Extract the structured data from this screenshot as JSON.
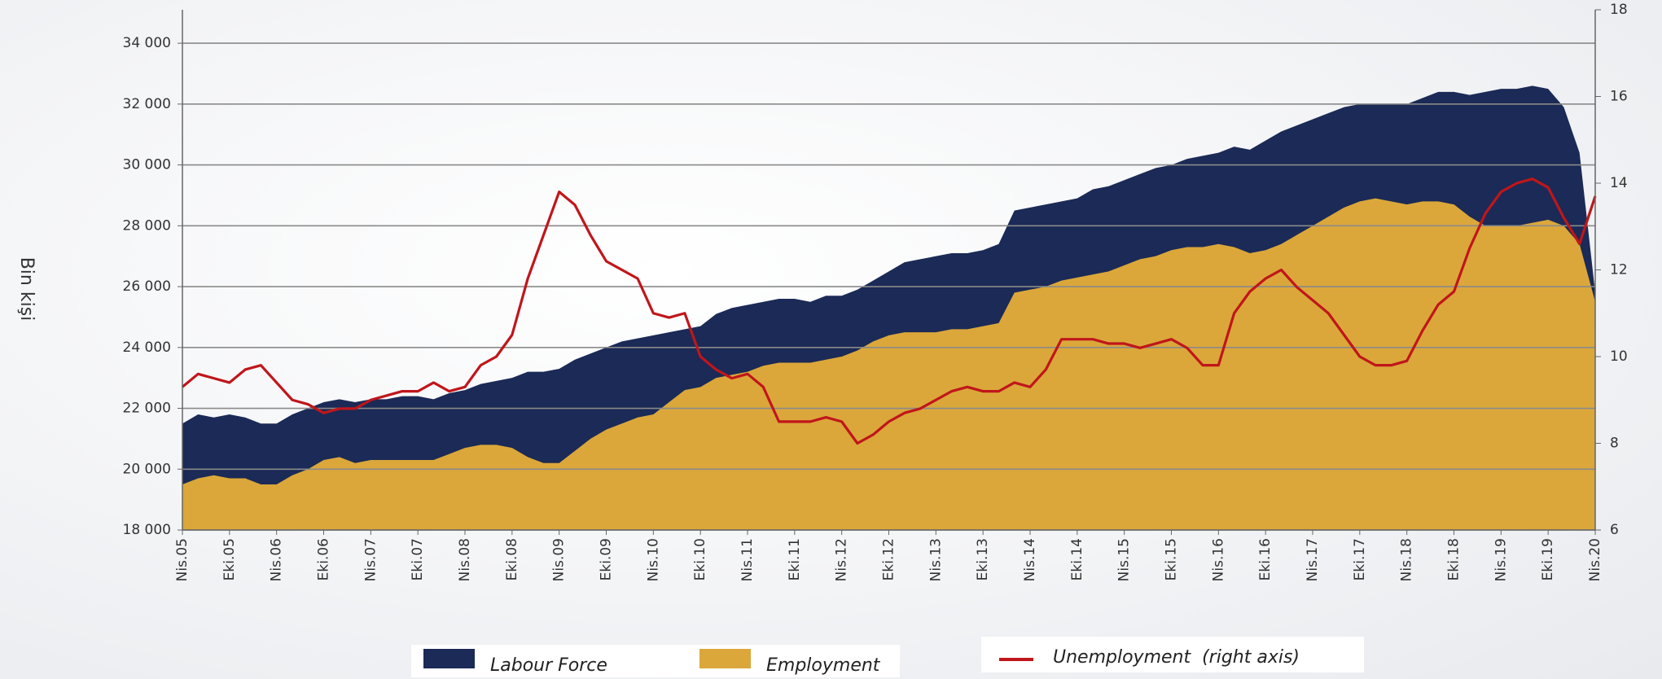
{
  "chart_data": {
    "type": "area",
    "y_axis_label": "Bin kişi",
    "categories": [
      "Nis.05",
      null,
      null,
      "Eki.05",
      null,
      null,
      "Nis.06",
      null,
      null,
      "Eki.06",
      null,
      null,
      "Nis.07",
      null,
      null,
      "Eki.07",
      null,
      null,
      "Nis.08",
      null,
      null,
      "Eki.08",
      null,
      null,
      "Nis.09",
      null,
      null,
      "Eki.09",
      null,
      null,
      "Nis.10",
      null,
      null,
      "Eki.10",
      null,
      null,
      "Nis.11",
      null,
      null,
      "Eki.11",
      null,
      null,
      "Nis.12",
      null,
      null,
      "Eki.12",
      null,
      null,
      "Nis.13",
      null,
      null,
      "Eki.13",
      null,
      null,
      "Nis.14",
      null,
      null,
      "Eki.14",
      null,
      null,
      "Nis.15",
      null,
      null,
      "Eki.15",
      null,
      null,
      "Nis.16",
      null,
      null,
      "Eki.16",
      null,
      null,
      "Nis.17",
      null,
      null,
      "Eki.17",
      null,
      null,
      "Nis.18",
      null,
      null,
      "Eki.18",
      null,
      null,
      "Nis.19",
      null,
      null,
      "Eki.19",
      null,
      null,
      "Nis.20"
    ],
    "series": [
      {
        "name": "Labour Force",
        "type": "area",
        "color": "#1b2a56",
        "values": [
          21500,
          21800,
          21700,
          21800,
          21700,
          21500,
          21500,
          21800,
          22000,
          22200,
          22300,
          22200,
          22300,
          22300,
          22400,
          22400,
          22300,
          22500,
          22600,
          22800,
          22900,
          23000,
          23200,
          23200,
          23300,
          23600,
          23800,
          24000,
          24200,
          24300,
          24400,
          24500,
          24600,
          24700,
          25100,
          25300,
          25400,
          25500,
          25600,
          25600,
          25500,
          25700,
          25700,
          25900,
          26200,
          26500,
          26800,
          26900,
          27000,
          27100,
          27100,
          27200,
          27400,
          28500,
          28600,
          28700,
          28800,
          28900,
          29200,
          29300,
          29500,
          29700,
          29900,
          30000,
          30200,
          30300,
          30400,
          30600,
          30500,
          30800,
          31100,
          31300,
          31500,
          31700,
          31900,
          32000,
          32000,
          32000,
          32000,
          32200,
          32400,
          32400,
          32300,
          32400,
          32500,
          32500,
          32600,
          32500,
          31900,
          30400,
          25800
        ]
      },
      {
        "name": "Employment",
        "type": "area",
        "color": "#dba73a",
        "values": [
          19500,
          19700,
          19800,
          19700,
          19700,
          19500,
          19500,
          19800,
          20000,
          20300,
          20400,
          20200,
          20300,
          20300,
          20300,
          20300,
          20300,
          20500,
          20700,
          20800,
          20800,
          20700,
          20400,
          20200,
          20200,
          20600,
          21000,
          21300,
          21500,
          21700,
          21800,
          22200,
          22600,
          22700,
          23000,
          23100,
          23200,
          23400,
          23500,
          23500,
          23500,
          23600,
          23700,
          23900,
          24200,
          24400,
          24500,
          24500,
          24500,
          24600,
          24600,
          24700,
          24800,
          25800,
          25900,
          26000,
          26200,
          26300,
          26400,
          26500,
          26700,
          26900,
          27000,
          27200,
          27300,
          27300,
          27400,
          27300,
          27100,
          27200,
          27400,
          27700,
          28000,
          28300,
          28600,
          28800,
          28900,
          28800,
          28700,
          28800,
          28800,
          28700,
          28300,
          28000,
          28000,
          28000,
          28100,
          28200,
          28000,
          27400,
          25500
        ]
      },
      {
        "name": "Unemployment  (right axis)",
        "type": "line",
        "axis": "y2",
        "color": "#c0161b",
        "values": [
          9.3,
          9.6,
          9.5,
          9.4,
          9.7,
          9.8,
          9.4,
          9.0,
          8.9,
          8.7,
          8.8,
          8.8,
          9.0,
          9.1,
          9.2,
          9.2,
          9.4,
          9.2,
          9.3,
          9.8,
          10.0,
          10.5,
          11.8,
          12.8,
          13.8,
          13.5,
          12.8,
          12.2,
          12.0,
          11.8,
          11.0,
          10.9,
          11.0,
          10.0,
          9.7,
          9.5,
          9.6,
          9.3,
          8.5,
          8.5,
          8.5,
          8.6,
          8.5,
          8.0,
          8.2,
          8.5,
          8.7,
          8.8,
          9.0,
          9.2,
          9.3,
          9.2,
          9.2,
          9.4,
          9.3,
          9.7,
          10.4,
          10.4,
          10.4,
          10.3,
          10.3,
          10.2,
          10.3,
          10.4,
          10.2,
          9.8,
          9.8,
          11.0,
          11.5,
          11.8,
          12.0,
          11.6,
          11.3,
          11.0,
          10.5,
          10.0,
          9.8,
          9.8,
          9.9,
          10.6,
          11.2,
          11.5,
          12.5,
          13.3,
          13.8,
          14.0,
          14.1,
          13.9,
          13.2,
          12.6,
          13.7
        ]
      }
    ],
    "ylim": [
      18000,
      35100
    ],
    "yticks": [
      {
        "value": 18000,
        "label": "18 000"
      },
      {
        "value": 20000,
        "label": "20 000"
      },
      {
        "value": 22000,
        "label": "22 000"
      },
      {
        "value": 24000,
        "label": "24 000"
      },
      {
        "value": 26000,
        "label": "26 000"
      },
      {
        "value": 28000,
        "label": "28 000"
      },
      {
        "value": 30000,
        "label": "30 000"
      },
      {
        "value": 32000,
        "label": "32 000"
      },
      {
        "value": 34000,
        "label": "34 000"
      }
    ],
    "y2lim": [
      6,
      18
    ],
    "y2ticks": [
      6,
      8,
      10,
      12,
      14,
      16,
      18
    ],
    "grid": true,
    "legend": "bottom"
  }
}
